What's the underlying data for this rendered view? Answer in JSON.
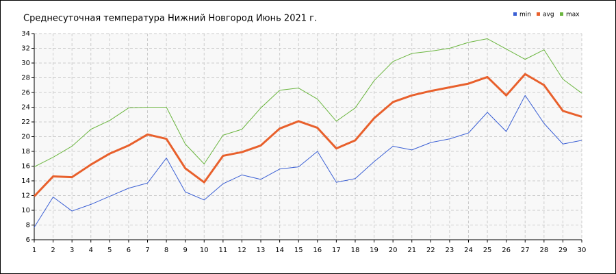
{
  "chart_data": {
    "type": "line",
    "title": "Среднесуточная температура Нижний Новгород  Июнь 2021 г.",
    "x": [
      1,
      2,
      3,
      4,
      5,
      6,
      7,
      8,
      9,
      10,
      11,
      12,
      13,
      14,
      15,
      16,
      17,
      18,
      19,
      20,
      21,
      22,
      23,
      24,
      25,
      26,
      27,
      28,
      29,
      30
    ],
    "xlim": [
      1,
      30
    ],
    "ylim": [
      6,
      34
    ],
    "yticks": [
      6,
      8,
      10,
      12,
      14,
      16,
      18,
      20,
      22,
      24,
      26,
      28,
      30,
      32,
      34
    ],
    "grid": true,
    "series": [
      {
        "name": "min",
        "color": "#3a5fd4",
        "width": 1,
        "values": [
          7.7,
          11.8,
          9.9,
          10.8,
          11.9,
          13.0,
          13.7,
          17.1,
          12.5,
          11.4,
          13.6,
          14.8,
          14.2,
          15.6,
          15.9,
          18.0,
          13.8,
          14.3,
          16.6,
          18.7,
          18.2,
          19.2,
          19.7,
          20.5,
          23.3,
          20.7,
          25.6,
          21.8,
          19.0,
          19.5
        ]
      },
      {
        "name": "avg",
        "color": "#e8602c",
        "width": 3,
        "values": [
          11.9,
          14.6,
          14.5,
          16.2,
          17.7,
          18.8,
          20.3,
          19.7,
          15.7,
          13.8,
          17.4,
          17.9,
          18.8,
          21.1,
          22.1,
          21.2,
          18.4,
          19.5,
          22.5,
          24.7,
          25.6,
          26.2,
          26.7,
          27.2,
          28.1,
          25.6,
          28.5,
          27.0,
          23.5,
          22.7
        ]
      },
      {
        "name": "max",
        "color": "#6ab53e",
        "width": 1,
        "values": [
          15.9,
          17.2,
          18.7,
          21.0,
          22.2,
          23.9,
          24.0,
          24.0,
          19.0,
          16.3,
          20.2,
          21.0,
          23.9,
          26.3,
          26.6,
          25.1,
          22.1,
          23.9,
          27.6,
          30.2,
          31.3,
          31.6,
          32.0,
          32.8,
          33.3,
          31.9,
          30.5,
          31.8,
          27.8,
          25.9
        ]
      }
    ]
  }
}
